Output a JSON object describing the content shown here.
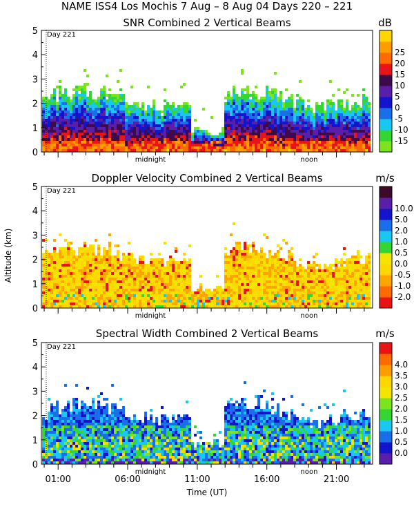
{
  "figure_title": "NAME ISS4 Los Mochis    7 Aug –  8 Aug 04 Days 220 – 221",
  "ylabel": "Altitude (km)",
  "xlabel": "Time (UT)",
  "day_marker": "Day 221",
  "x_tick_labels": [
    "01:00",
    "06:00",
    "11:00",
    "16:00",
    "21:00"
  ],
  "time_markers": [
    "midnight",
    "noon"
  ],
  "chart_data": [
    {
      "type": "heatmap",
      "title": "SNR Combined 2 Vertical Beams",
      "units": "dB",
      "xlabel": "Time (UT)",
      "ylabel": "Altitude (km)",
      "xlim_hours": [
        -0.2,
        23.6
      ],
      "ylim_km": [
        0,
        5
      ],
      "y_ticks": [
        "0",
        "1",
        "2",
        "3",
        "4",
        "5"
      ],
      "colorbar_ticks": [
        "-15",
        "-10",
        "-5",
        "0",
        "5",
        "10",
        "15",
        "20",
        "25"
      ],
      "colorbar_colors": [
        "#7ce31f",
        "#33d633",
        "#19c8f0",
        "#1a6ee8",
        "#1414cc",
        "#5a1fa8",
        "#3d0a4a",
        "#e8141a",
        "#ff6a00",
        "#ff9d00",
        "#ffd700"
      ]
    },
    {
      "type": "heatmap",
      "title": "Doppler Velocity Combined 2 Vertical Beams",
      "units": "m/s",
      "xlabel": "Time (UT)",
      "ylabel": "Altitude (km)",
      "xlim_hours": [
        -0.2,
        23.6
      ],
      "ylim_km": [
        0,
        5
      ],
      "y_ticks": [
        "0",
        "1",
        "2",
        "3",
        "4",
        "5"
      ],
      "colorbar_ticks": [
        "-2.0",
        "-1.0",
        "-0.5",
        "0.0",
        "0.5",
        "1.0",
        "2.0",
        "5.0",
        "10.0"
      ],
      "colorbar_colors": [
        "#e81414",
        "#ff6a00",
        "#ffa500",
        "#ffd700",
        "#f2e600",
        "#33d633",
        "#19c8f0",
        "#1a6ee8",
        "#1414cc",
        "#5a1fa8",
        "#3d0a2a"
      ]
    },
    {
      "type": "heatmap",
      "title": "Spectral Width Combined 2 Vertical Beams",
      "units": "m/s",
      "xlabel": "Time (UT)",
      "ylabel": "Altitude (km)",
      "xlim_hours": [
        -0.2,
        23.6
      ],
      "ylim_km": [
        0,
        5
      ],
      "y_ticks": [
        "0",
        "1",
        "2",
        "3",
        "4",
        "5"
      ],
      "colorbar_ticks": [
        "0.0",
        "0.5",
        "1.0",
        "1.5",
        "2.0",
        "2.5",
        "3.0",
        "3.5",
        "4.0"
      ],
      "colorbar_colors": [
        "#5a1fa8",
        "#1414cc",
        "#1a6ee8",
        "#19c8f0",
        "#33d633",
        "#7ce31f",
        "#f2e600",
        "#ffd700",
        "#ff9d00",
        "#ff6a00",
        "#e81414"
      ]
    }
  ]
}
